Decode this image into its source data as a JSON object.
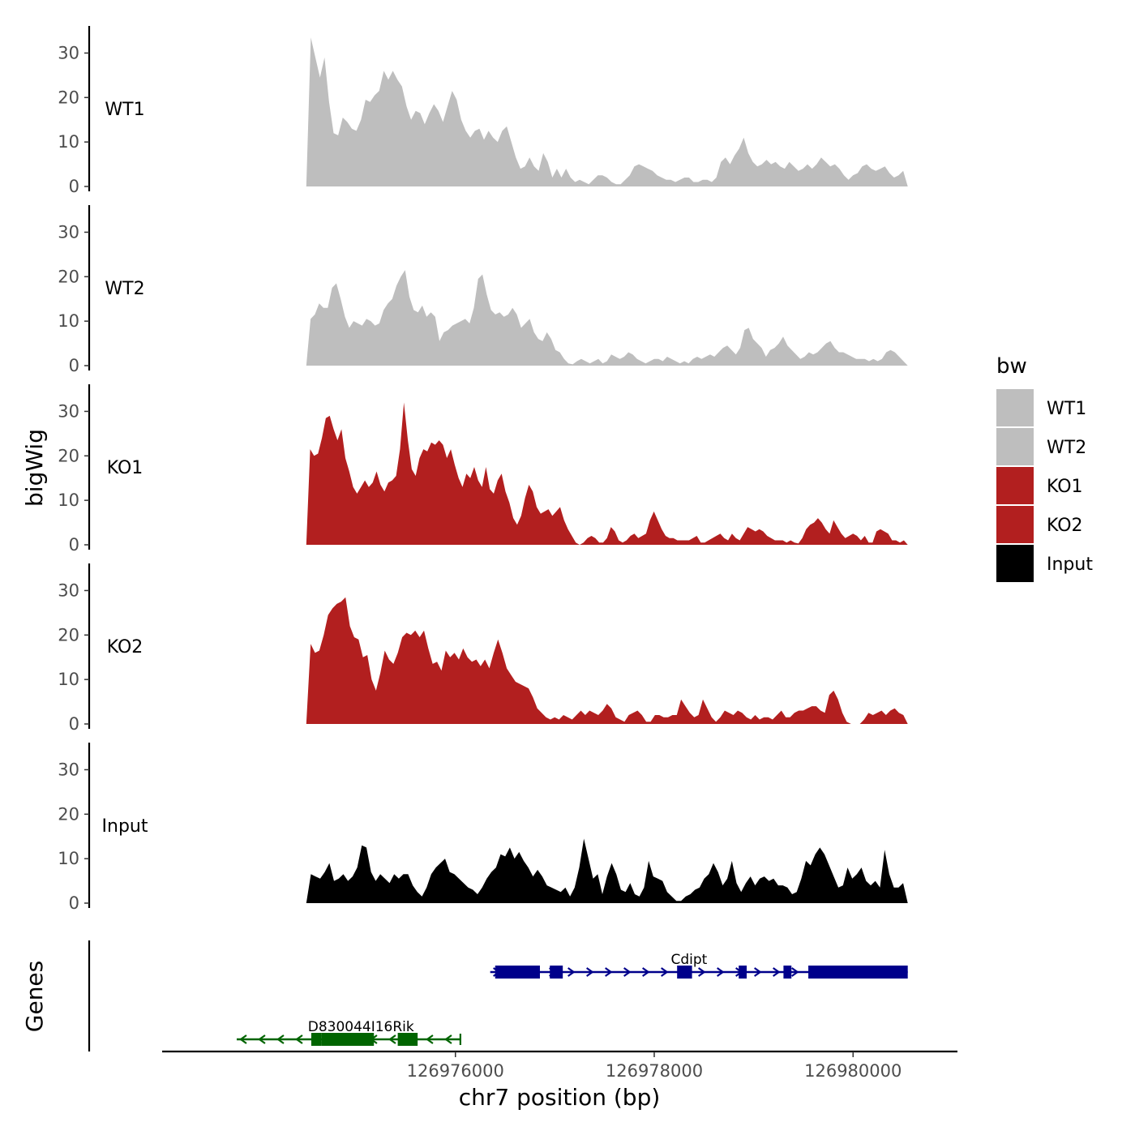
{
  "chart_data": {
    "type": "area",
    "y_axis_label": "bigWig",
    "genes_axis_label": "Genes",
    "x_axis_label": "chr7 position (bp)",
    "x_range": [
      126973050,
      126981050
    ],
    "x_ticks": [
      126976000,
      126978000,
      126980000
    ],
    "x_tick_labels": [
      "126976000",
      "126978000",
      "126980000"
    ],
    "y_range": [
      0,
      35
    ],
    "y_ticks": [
      0,
      10,
      20,
      30
    ],
    "y_tick_labels": [
      "0",
      "10",
      "20",
      "30"
    ],
    "grid": false,
    "legend": {
      "title": "bw",
      "position": "right",
      "entries": [
        {
          "label": "WT1",
          "color": "#bebebe"
        },
        {
          "label": "WT2",
          "color": "#bebebe"
        },
        {
          "label": "KO1",
          "color": "#b21f1f"
        },
        {
          "label": "KO2",
          "color": "#b21f1f"
        },
        {
          "label": "Input",
          "color": "#000000"
        }
      ]
    },
    "series": [
      {
        "name": "WT1",
        "color": "#bebebe",
        "x_start": 126974500,
        "x_end": 126980550,
        "values": [
          0,
          33.5,
          29,
          24.5,
          29,
          19,
          12,
          11.5,
          15.5,
          14.5,
          13,
          12.5,
          15,
          19.5,
          19,
          20.5,
          21.5,
          26,
          24,
          26,
          24,
          22.5,
          18,
          15,
          17,
          16.5,
          14,
          16.5,
          18.5,
          17,
          14.5,
          18,
          21.5,
          19.5,
          15,
          12.5,
          11,
          12.5,
          13,
          10.5,
          12.5,
          11,
          10,
          12.5,
          13.5,
          10,
          6.5,
          4,
          4.5,
          6.5,
          4.5,
          3.5,
          7.5,
          5.5,
          2,
          4,
          2,
          4,
          2,
          1,
          1.5,
          1,
          0.5,
          1.5,
          2.5,
          2.5,
          2,
          1,
          0.5,
          0.5,
          1.5,
          2.5,
          4.5,
          5,
          4.5,
          4,
          3.5,
          2.5,
          2,
          1.5,
          1.5,
          1,
          1.5,
          2,
          2,
          1,
          1,
          1.5,
          1.5,
          1,
          2,
          5.5,
          6.5,
          5,
          7,
          8.5,
          11,
          7.5,
          5.5,
          4.5,
          5,
          6,
          5,
          5.5,
          4.5,
          4,
          5.5,
          4.5,
          3.5,
          4,
          5,
          4,
          5,
          6.5,
          5.5,
          4.5,
          5,
          4,
          2.5,
          1.5,
          2.5,
          3,
          4.5,
          5,
          4,
          3.5,
          4,
          4.5,
          3,
          2,
          2.5,
          3.5,
          0
        ]
      },
      {
        "name": "WT2",
        "color": "#bebebe",
        "x_start": 126974500,
        "x_end": 126980550,
        "values": [
          0,
          10.5,
          11.5,
          14,
          13,
          13,
          17.5,
          18.5,
          15,
          11,
          8.5,
          10,
          9.5,
          9,
          10.5,
          10,
          9,
          9.5,
          12.5,
          14,
          15,
          18,
          20,
          21.5,
          15.5,
          12.5,
          12,
          13.5,
          11,
          12,
          11,
          5.5,
          7.5,
          8,
          9,
          9.5,
          10,
          10.5,
          9.5,
          13,
          19.5,
          20.5,
          16,
          12.5,
          11.5,
          12,
          11,
          11.5,
          13,
          11.5,
          8.5,
          9.5,
          10.5,
          7.5,
          6,
          5.5,
          7.5,
          6,
          3.5,
          3,
          1.5,
          0.5,
          0.3,
          1,
          1.5,
          1,
          0.5,
          1,
          1.5,
          0.5,
          1,
          2.5,
          2,
          1.5,
          2,
          3,
          2.5,
          1.5,
          1,
          0.5,
          1,
          1.5,
          1.5,
          1,
          2,
          1.5,
          1,
          0.5,
          1,
          0.5,
          1.5,
          2,
          1.5,
          2,
          2.5,
          2,
          3,
          4,
          4.5,
          3.5,
          2.5,
          4,
          8,
          8.5,
          6,
          5,
          4,
          2,
          3.5,
          4,
          5,
          6.5,
          4.5,
          3.5,
          2.5,
          1.5,
          2,
          3,
          2.5,
          3,
          4,
          5,
          5.5,
          4,
          3,
          3,
          2.5,
          2,
          1.5,
          1.5,
          1.5,
          1,
          1.5,
          1,
          1.5,
          3,
          3.5,
          3,
          2,
          1,
          0
        ]
      },
      {
        "name": "KO1",
        "color": "#b21f1f",
        "x_start": 126974500,
        "x_end": 126980550,
        "values": [
          0,
          21.5,
          20,
          20.5,
          24,
          28.5,
          29,
          26,
          23.5,
          26,
          19.5,
          16.5,
          13,
          11.5,
          13,
          14.5,
          13,
          14,
          16.5,
          13.5,
          12,
          14,
          14.5,
          15.5,
          21.5,
          32,
          23.5,
          17,
          15.5,
          19.5,
          21.5,
          21,
          23,
          22.5,
          23.5,
          22.5,
          19.5,
          21.5,
          18,
          15,
          13,
          16,
          15,
          17.5,
          14.5,
          13,
          17.5,
          12.5,
          11.5,
          14.5,
          16,
          12,
          9.5,
          6,
          4.5,
          6.5,
          10.5,
          13.5,
          12,
          8.5,
          7,
          7.5,
          8,
          6.5,
          7.5,
          8.5,
          5.5,
          3.5,
          2,
          0.5,
          0,
          0.5,
          1.5,
          2,
          1.5,
          0.5,
          0.5,
          1.5,
          4,
          3,
          1,
          0.5,
          1,
          2,
          2.5,
          1.5,
          2,
          2.5,
          5.5,
          7.5,
          5.5,
          3.5,
          2,
          1.5,
          1.5,
          1,
          1,
          1,
          1,
          1.5,
          2,
          0.5,
          0.5,
          1,
          1.5,
          2,
          2.5,
          1.5,
          1,
          2.5,
          1.5,
          1,
          2.5,
          4,
          3.5,
          3,
          3.5,
          3,
          2,
          1.5,
          1,
          1,
          1,
          0.5,
          1,
          0.5,
          0.3,
          1.5,
          3.5,
          4.5,
          5,
          6,
          5,
          3.5,
          2.5,
          5.5,
          4,
          2.5,
          1.5,
          2,
          2.5,
          2,
          1,
          2,
          0.5,
          0.5,
          3,
          3.5,
          3,
          2.5,
          1,
          1,
          0.5,
          1,
          0
        ]
      },
      {
        "name": "KO2",
        "color": "#b21f1f",
        "x_start": 126974500,
        "x_end": 126980550,
        "values": [
          0,
          18,
          16,
          16.5,
          20,
          24.5,
          26,
          27,
          27.5,
          28.5,
          22,
          19.5,
          19,
          15,
          15.5,
          10,
          7.5,
          11.5,
          16.5,
          14.5,
          13.5,
          16,
          19.5,
          20.5,
          20,
          21,
          19.5,
          21,
          17,
          13.5,
          14,
          12,
          16.5,
          15,
          16,
          14.5,
          17,
          15,
          14,
          14.5,
          13,
          14.5,
          12.5,
          16,
          19,
          16,
          12.5,
          11,
          9.5,
          9,
          8.5,
          8,
          6,
          3.5,
          2.5,
          1.5,
          1,
          1.5,
          1,
          2,
          1.5,
          1,
          2,
          3,
          2,
          3,
          2.5,
          2,
          3,
          4.5,
          3.5,
          1.5,
          1,
          0.5,
          2,
          2.5,
          3,
          2,
          0.5,
          0.5,
          2,
          2,
          1.5,
          1.5,
          2,
          2,
          5.5,
          4,
          2.5,
          1.5,
          2,
          5.5,
          3.5,
          1.5,
          0.5,
          1.5,
          3,
          2.5,
          2,
          3,
          2.5,
          1.5,
          1,
          2,
          1,
          1.5,
          1.5,
          1,
          2,
          3,
          1.5,
          1.5,
          2.5,
          3,
          3,
          3.5,
          4,
          4,
          3,
          2.5,
          6.5,
          7.5,
          5.5,
          2.5,
          0.5,
          0,
          0,
          0,
          1,
          2.5,
          2,
          2.5,
          3,
          2,
          3,
          3.5,
          2.5,
          2,
          0
        ]
      },
      {
        "name": "Input",
        "color": "#000000",
        "x_start": 126974500,
        "x_end": 126980550,
        "values": [
          0,
          6.5,
          6,
          5.5,
          7,
          9,
          5,
          5.5,
          6.5,
          5,
          6,
          8,
          13,
          12.5,
          7,
          5,
          6.5,
          5.5,
          4.5,
          6.5,
          5.5,
          6.5,
          6.5,
          4,
          2.5,
          1.5,
          3.5,
          6.5,
          8,
          9,
          10,
          7,
          6.5,
          5.5,
          4.5,
          3.5,
          3,
          2,
          3.5,
          5.5,
          7,
          8,
          11,
          10.5,
          12.5,
          10,
          11.5,
          9.5,
          8,
          6,
          7.5,
          6,
          4,
          3.5,
          3,
          2.5,
          3.5,
          1.5,
          3.5,
          8,
          14.5,
          10,
          5.5,
          6.5,
          2,
          6,
          9,
          6.5,
          3,
          2.5,
          4.5,
          2,
          1.5,
          3.5,
          9.5,
          6,
          5.5,
          5,
          2.5,
          1.5,
          0.5,
          0.5,
          1.5,
          2,
          3,
          3.5,
          5.5,
          6.5,
          9,
          7,
          4,
          5.5,
          9.5,
          4.5,
          2.5,
          4.5,
          6,
          4,
          5.5,
          6,
          5,
          5.5,
          4,
          4,
          3.5,
          2,
          2.5,
          5.5,
          9.5,
          8.5,
          11,
          12.5,
          11,
          8.5,
          6,
          3.5,
          4,
          8,
          5.5,
          6.5,
          8,
          5,
          4,
          5,
          3.5,
          12,
          6.5,
          3.5,
          3.5,
          4.5,
          0
        ]
      }
    ],
    "genes": [
      {
        "name": "Cdipt",
        "strand": "+",
        "color": "#00008b",
        "start": 126976350,
        "end": 126980550,
        "exons": [
          [
            126976400,
            126976850
          ],
          [
            126976950,
            126977080
          ],
          [
            126978230,
            126978380
          ],
          [
            126978850,
            126978930
          ],
          [
            126979300,
            126979380
          ],
          [
            126979550,
            126980550
          ]
        ]
      },
      {
        "name": "D830044I16Rik",
        "strand": "-",
        "color": "#006400",
        "start": 126973800,
        "end": 126976050,
        "exons": [
          [
            126974550,
            126974650
          ],
          [
            126974650,
            126975180
          ],
          [
            126975420,
            126975620
          ]
        ]
      }
    ]
  }
}
